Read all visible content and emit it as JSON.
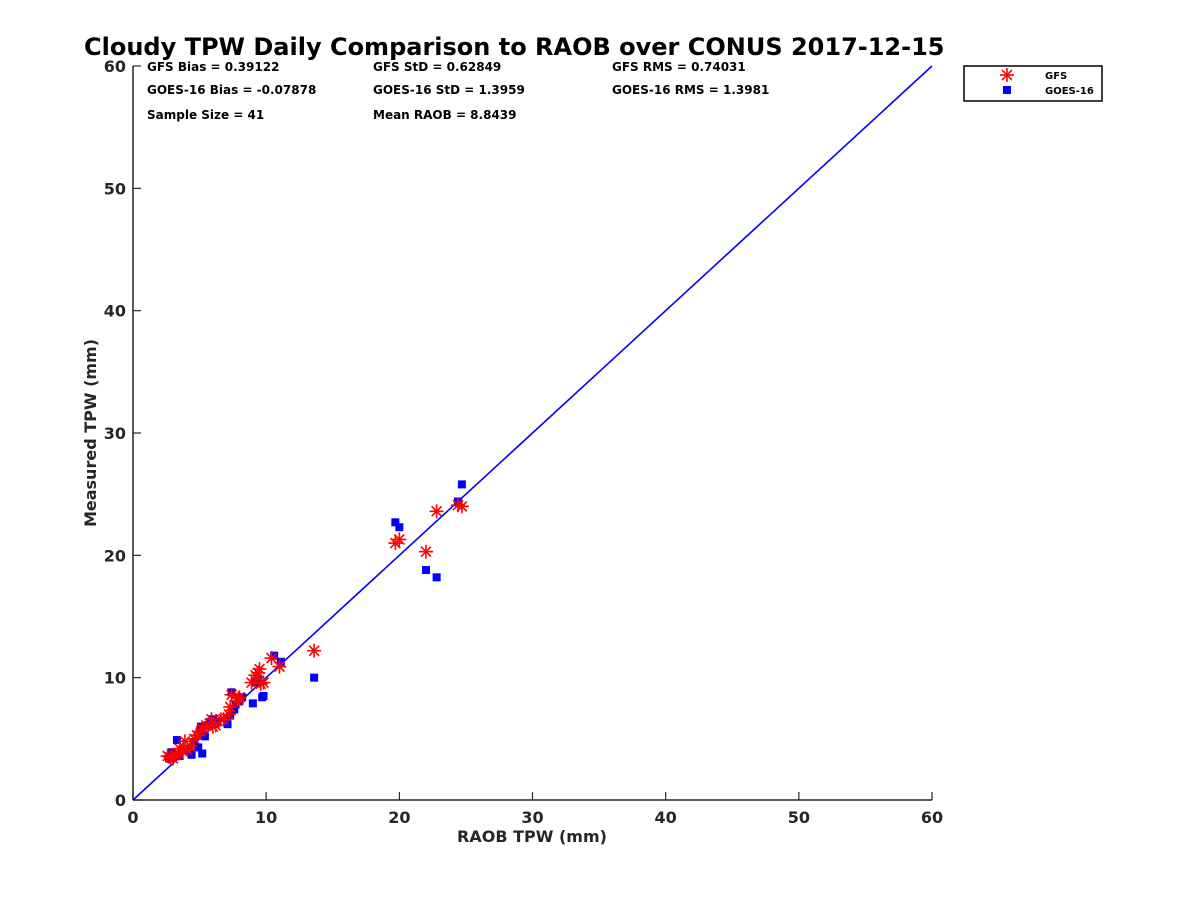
{
  "chart_data": {
    "type": "scatter",
    "title": "Cloudy TPW Daily Comparison to RAOB over CONUS 2017-12-15",
    "xlabel": "RAOB TPW (mm)",
    "ylabel": "Measured TPW (mm)",
    "xlim": [
      0,
      60
    ],
    "ylim": [
      0,
      60
    ],
    "xticks": [
      0,
      10,
      20,
      30,
      40,
      50,
      60
    ],
    "yticks": [
      0,
      10,
      20,
      30,
      40,
      50,
      60
    ],
    "grid": false,
    "legend_position": "outside-top-right",
    "stats": [
      [
        "GFS Bias = 0.39122",
        "GFS StD = 0.62849",
        "GFS RMS = 0.74031"
      ],
      [
        "GOES-16 Bias = -0.07878",
        "GOES-16 StD = 1.3959",
        "GOES-16 RMS = 1.3981"
      ],
      [
        "Sample Size = 41",
        "Mean RAOB = 8.8439",
        ""
      ]
    ],
    "reference_line": {
      "from": [
        0,
        0
      ],
      "to": [
        60,
        60
      ],
      "color": "#0000ff"
    },
    "series": [
      {
        "name": "GFS",
        "marker": "asterisk",
        "color": "#ff0000",
        "points": [
          [
            2.6,
            3.6
          ],
          [
            3.0,
            3.4
          ],
          [
            3.2,
            3.7
          ],
          [
            3.5,
            4.2
          ],
          [
            3.9,
            4.8
          ],
          [
            4.3,
            4.4
          ],
          [
            4.8,
            5.3
          ],
          [
            5.1,
            5.6
          ],
          [
            5.5,
            6.1
          ],
          [
            5.9,
            6.6
          ],
          [
            6.2,
            6.1
          ],
          [
            6.6,
            6.6
          ],
          [
            7.3,
            7.6
          ],
          [
            7.4,
            8.6
          ],
          [
            7.8,
            8.1
          ],
          [
            7.9,
            8.3
          ],
          [
            8.9,
            9.6
          ],
          [
            9.2,
            10.2
          ],
          [
            9.5,
            10.7
          ],
          [
            9.8,
            9.6
          ],
          [
            10.4,
            11.6
          ],
          [
            11.0,
            10.9
          ],
          [
            13.6,
            12.2
          ],
          [
            19.7,
            21.0
          ],
          [
            20.0,
            21.3
          ],
          [
            22.0,
            20.3
          ],
          [
            22.8,
            23.6
          ],
          [
            24.4,
            24.1
          ],
          [
            24.7,
            24.0
          ],
          [
            4.1,
            4.1
          ],
          [
            6.0,
            6.0
          ],
          [
            3.4,
            3.8
          ],
          [
            7.2,
            7.0
          ],
          [
            9.6,
            9.5
          ],
          [
            5.2,
            5.8
          ],
          [
            8.0,
            8.4
          ],
          [
            4.6,
            5.0
          ],
          [
            2.8,
            3.5
          ],
          [
            9.4,
            10.4
          ],
          [
            6.8,
            6.6
          ],
          [
            3.7,
            4.0
          ]
        ]
      },
      {
        "name": "GOES-16",
        "marker": "square",
        "color": "#0000ff",
        "points": [
          [
            2.7,
            3.4
          ],
          [
            2.9,
            3.9
          ],
          [
            3.3,
            4.9
          ],
          [
            3.5,
            3.6
          ],
          [
            3.8,
            4.1
          ],
          [
            4.2,
            4.0
          ],
          [
            4.4,
            3.7
          ],
          [
            4.9,
            4.3
          ],
          [
            5.0,
            5.4
          ],
          [
            5.1,
            6.0
          ],
          [
            5.2,
            3.8
          ],
          [
            5.6,
            6.1
          ],
          [
            6.0,
            6.6
          ],
          [
            6.3,
            6.4
          ],
          [
            7.1,
            6.2
          ],
          [
            7.3,
            6.9
          ],
          [
            7.4,
            8.8
          ],
          [
            7.7,
            7.8
          ],
          [
            8.0,
            8.1
          ],
          [
            9.0,
            7.9
          ],
          [
            9.2,
            9.6
          ],
          [
            9.4,
            9.9
          ],
          [
            9.7,
            8.4
          ],
          [
            10.6,
            11.8
          ],
          [
            11.1,
            11.3
          ],
          [
            13.6,
            10.0
          ],
          [
            19.7,
            22.7
          ],
          [
            20.0,
            22.3
          ],
          [
            22.0,
            18.8
          ],
          [
            22.8,
            18.2
          ],
          [
            24.4,
            24.4
          ],
          [
            24.7,
            25.8
          ],
          [
            4.6,
            4.6
          ],
          [
            5.4,
            5.2
          ],
          [
            6.1,
            6.2
          ],
          [
            8.2,
            8.4
          ],
          [
            9.8,
            8.5
          ],
          [
            3.1,
            3.7
          ],
          [
            4.0,
            4.2
          ],
          [
            7.6,
            7.4
          ],
          [
            5.8,
            6.4
          ]
        ]
      }
    ]
  }
}
